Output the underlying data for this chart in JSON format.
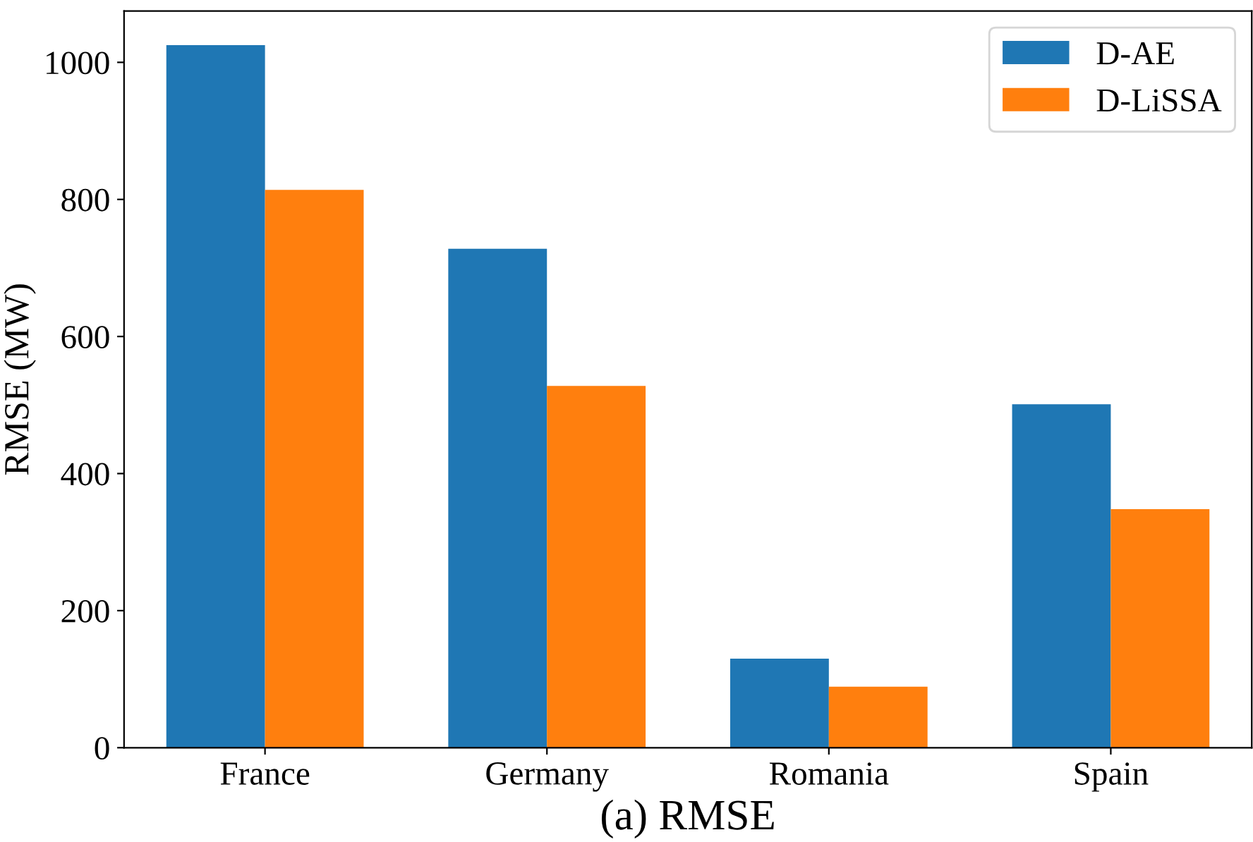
{
  "chart_data": {
    "type": "bar",
    "xlabel": "(a) RMSE",
    "ylabel": "RMSE (MW)",
    "categories": [
      "France",
      "Germany",
      "Romania",
      "Spain"
    ],
    "series": [
      {
        "name": "D-AE",
        "color": "#1f77b4",
        "values": [
          1025,
          728,
          130,
          501
        ]
      },
      {
        "name": "D-LiSSA",
        "color": "#ff7f0e",
        "values": [
          814,
          528,
          89,
          348
        ]
      }
    ],
    "ylim": [
      0,
      1075
    ],
    "yticks": [
      0,
      200,
      400,
      600,
      800,
      1000
    ],
    "grid": false,
    "legend": "top right"
  }
}
